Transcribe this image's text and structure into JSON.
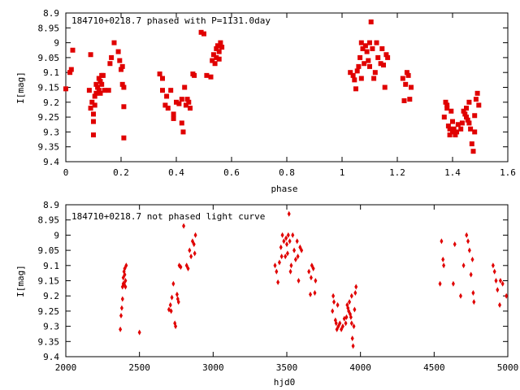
{
  "chart_data": [
    {
      "type": "scatter",
      "title": "184710+0218.7 phased with P=1131.0day",
      "xlabel": "phase",
      "ylabel": "I[mag]",
      "xlim": [
        0,
        1.6
      ],
      "ylim": [
        8.9,
        9.4
      ],
      "y_inverted": true,
      "grid": false,
      "marker": "filled square",
      "color": "#e00000",
      "xticks": [
        "0",
        "0.2",
        "0.4",
        "0.6",
        "0.8",
        "1",
        "1.2",
        "1.4",
        "1.6"
      ],
      "yticks": [
        "8.9",
        "8.95",
        "9",
        "9.05",
        "9.1",
        "9.15",
        "9.2",
        "9.25",
        "9.3",
        "9.35",
        "9.4"
      ],
      "points": [
        [
          0.0,
          9.155
        ],
        [
          0.015,
          9.1
        ],
        [
          0.02,
          9.09
        ],
        [
          0.025,
          9.025
        ],
        [
          0.085,
          9.16
        ],
        [
          0.09,
          9.04
        ],
        [
          0.095,
          9.2
        ],
        [
          0.1,
          9.31
        ],
        [
          0.1,
          9.265
        ],
        [
          0.105,
          9.21
        ],
        [
          0.105,
          9.18
        ],
        [
          0.11,
          9.17
        ],
        [
          0.11,
          9.14
        ],
        [
          0.115,
          9.15
        ],
        [
          0.12,
          9.16
        ],
        [
          0.12,
          9.12
        ],
        [
          0.125,
          9.13
        ],
        [
          0.13,
          9.11
        ],
        [
          0.13,
          9.14
        ],
        [
          0.135,
          9.11
        ],
        [
          0.14,
          9.16
        ],
        [
          0.09,
          9.22
        ],
        [
          0.1,
          9.24
        ],
        [
          0.125,
          9.17
        ],
        [
          0.155,
          9.16
        ],
        [
          0.16,
          9.07
        ],
        [
          0.165,
          9.05
        ],
        [
          0.175,
          9.0
        ],
        [
          0.19,
          9.03
        ],
        [
          0.195,
          9.06
        ],
        [
          0.2,
          9.09
        ],
        [
          0.205,
          9.14
        ],
        [
          0.21,
          9.15
        ],
        [
          0.21,
          9.215
        ],
        [
          0.21,
          9.32
        ],
        [
          0.205,
          9.08
        ],
        [
          0.34,
          9.105
        ],
        [
          0.35,
          9.12
        ],
        [
          0.35,
          9.16
        ],
        [
          0.36,
          9.21
        ],
        [
          0.365,
          9.18
        ],
        [
          0.37,
          9.22
        ],
        [
          0.38,
          9.16
        ],
        [
          0.39,
          9.24
        ],
        [
          0.39,
          9.255
        ],
        [
          0.4,
          9.2
        ],
        [
          0.41,
          9.205
        ],
        [
          0.42,
          9.19
        ],
        [
          0.42,
          9.27
        ],
        [
          0.425,
          9.3
        ],
        [
          0.43,
          9.15
        ],
        [
          0.435,
          9.21
        ],
        [
          0.44,
          9.19
        ],
        [
          0.445,
          9.2
        ],
        [
          0.45,
          9.22
        ],
        [
          0.46,
          9.105
        ],
        [
          0.465,
          9.11
        ],
        [
          0.49,
          8.965
        ],
        [
          0.5,
          8.97
        ],
        [
          0.51,
          9.11
        ],
        [
          0.525,
          9.115
        ],
        [
          0.53,
          9.06
        ],
        [
          0.535,
          9.04
        ],
        [
          0.54,
          9.07
        ],
        [
          0.545,
          9.02
        ],
        [
          0.55,
          9.01
        ],
        [
          0.555,
          9.03
        ],
        [
          0.56,
          9.0
        ],
        [
          0.565,
          9.015
        ],
        [
          0.555,
          9.055
        ],
        [
          0.545,
          9.05
        ],
        [
          1.03,
          9.1
        ],
        [
          1.04,
          9.11
        ],
        [
          1.045,
          9.125
        ],
        [
          1.05,
          9.155
        ],
        [
          1.055,
          9.095
        ],
        [
          1.06,
          9.08
        ],
        [
          1.065,
          9.05
        ],
        [
          1.07,
          9.0
        ],
        [
          1.075,
          9.02
        ],
        [
          1.08,
          9.07
        ],
        [
          1.085,
          9.01
        ],
        [
          1.09,
          9.03
        ],
        [
          1.095,
          9.06
        ],
        [
          1.1,
          9.0
        ],
        [
          1.105,
          8.93
        ],
        [
          1.11,
          9.02
        ],
        [
          1.115,
          9.12
        ],
        [
          1.12,
          9.1
        ],
        [
          1.125,
          9.0
        ],
        [
          1.13,
          9.05
        ],
        [
          1.14,
          9.07
        ],
        [
          1.145,
          9.02
        ],
        [
          1.15,
          9.075
        ],
        [
          1.155,
          9.15
        ],
        [
          1.16,
          9.04
        ],
        [
          1.165,
          9.05
        ],
        [
          1.07,
          9.12
        ],
        [
          1.1,
          9.08
        ],
        [
          1.22,
          9.12
        ],
        [
          1.225,
          9.195
        ],
        [
          1.23,
          9.14
        ],
        [
          1.235,
          9.1
        ],
        [
          1.24,
          9.11
        ],
        [
          1.245,
          9.19
        ],
        [
          1.25,
          9.15
        ],
        [
          1.37,
          9.25
        ],
        [
          1.375,
          9.2
        ],
        [
          1.38,
          9.22
        ],
        [
          1.385,
          9.28
        ],
        [
          1.39,
          9.29
        ],
        [
          1.39,
          9.31
        ],
        [
          1.395,
          9.23
        ],
        [
          1.4,
          9.3
        ],
        [
          1.405,
          9.29
        ],
        [
          1.41,
          9.31
        ],
        [
          1.415,
          9.3
        ],
        [
          1.42,
          9.275
        ],
        [
          1.43,
          9.29
        ],
        [
          1.435,
          9.27
        ],
        [
          1.44,
          9.23
        ],
        [
          1.445,
          9.24
        ],
        [
          1.45,
          9.25
        ],
        [
          1.45,
          9.22
        ],
        [
          1.455,
          9.26
        ],
        [
          1.46,
          9.27
        ],
        [
          1.46,
          9.2
        ],
        [
          1.465,
          9.29
        ],
        [
          1.47,
          9.34
        ],
        [
          1.475,
          9.365
        ],
        [
          1.48,
          9.3
        ],
        [
          1.48,
          9.245
        ],
        [
          1.485,
          9.19
        ],
        [
          1.49,
          9.17
        ],
        [
          1.495,
          9.21
        ],
        [
          1.38,
          9.21
        ],
        [
          1.4,
          9.265
        ]
      ]
    },
    {
      "type": "scatter",
      "title": "184710+0218.7 not phased light curve",
      "xlabel": "hjd0",
      "ylabel": "I[mag]",
      "xlim": [
        2000,
        5000
      ],
      "ylim": [
        8.9,
        9.4
      ],
      "y_inverted": true,
      "grid": false,
      "marker": "diamond",
      "color": "#e00000",
      "xticks": [
        "2000",
        "2500",
        "3000",
        "3500",
        "4000",
        "4500",
        "5000"
      ],
      "yticks": [
        "8.9",
        "8.95",
        "9",
        "9.05",
        "9.1",
        "9.15",
        "9.2",
        "9.25",
        "9.3",
        "9.35",
        "9.4"
      ],
      "points": [
        [
          2370,
          9.31
        ],
        [
          2375,
          9.265
        ],
        [
          2380,
          9.24
        ],
        [
          2385,
          9.21
        ],
        [
          2385,
          9.17
        ],
        [
          2390,
          9.16
        ],
        [
          2390,
          9.14
        ],
        [
          2395,
          9.16
        ],
        [
          2395,
          9.12
        ],
        [
          2400,
          9.13
        ],
        [
          2400,
          9.11
        ],
        [
          2405,
          9.15
        ],
        [
          2410,
          9.1
        ],
        [
          2405,
          9.17
        ],
        [
          2500,
          9.32
        ],
        [
          2700,
          9.245
        ],
        [
          2710,
          9.23
        ],
        [
          2715,
          9.25
        ],
        [
          2720,
          9.205
        ],
        [
          2730,
          9.16
        ],
        [
          2740,
          9.29
        ],
        [
          2745,
          9.3
        ],
        [
          2755,
          9.195
        ],
        [
          2760,
          9.21
        ],
        [
          2765,
          9.22
        ],
        [
          2770,
          9.1
        ],
        [
          2780,
          9.105
        ],
        [
          2800,
          8.97
        ],
        [
          2820,
          9.1
        ],
        [
          2830,
          9.11
        ],
        [
          2840,
          9.05
        ],
        [
          2850,
          9.07
        ],
        [
          2860,
          9.02
        ],
        [
          2870,
          9.03
        ],
        [
          2880,
          9.0
        ],
        [
          2875,
          9.06
        ],
        [
          3420,
          9.1
        ],
        [
          3430,
          9.12
        ],
        [
          3440,
          9.155
        ],
        [
          3450,
          9.09
        ],
        [
          3460,
          9.04
        ],
        [
          3465,
          9.07
        ],
        [
          3470,
          9.0
        ],
        [
          3480,
          9.02
        ],
        [
          3490,
          9.07
        ],
        [
          3495,
          9.01
        ],
        [
          3500,
          9.03
        ],
        [
          3505,
          9.06
        ],
        [
          3510,
          9.0
        ],
        [
          3515,
          8.93
        ],
        [
          3520,
          9.02
        ],
        [
          3525,
          9.12
        ],
        [
          3530,
          9.1
        ],
        [
          3540,
          9.0
        ],
        [
          3550,
          9.05
        ],
        [
          3560,
          9.08
        ],
        [
          3570,
          9.02
        ],
        [
          3575,
          9.07
        ],
        [
          3580,
          9.15
        ],
        [
          3590,
          9.04
        ],
        [
          3600,
          9.05
        ],
        [
          3650,
          9.12
        ],
        [
          3660,
          9.195
        ],
        [
          3665,
          9.14
        ],
        [
          3670,
          9.1
        ],
        [
          3680,
          9.11
        ],
        [
          3690,
          9.19
        ],
        [
          3695,
          9.15
        ],
        [
          3810,
          9.25
        ],
        [
          3815,
          9.2
        ],
        [
          3820,
          9.22
        ],
        [
          3830,
          9.28
        ],
        [
          3835,
          9.29
        ],
        [
          3840,
          9.31
        ],
        [
          3845,
          9.23
        ],
        [
          3850,
          9.3
        ],
        [
          3860,
          9.29
        ],
        [
          3870,
          9.31
        ],
        [
          3880,
          9.3
        ],
        [
          3890,
          9.275
        ],
        [
          3900,
          9.29
        ],
        [
          3905,
          9.27
        ],
        [
          3910,
          9.23
        ],
        [
          3915,
          9.24
        ],
        [
          3920,
          9.25
        ],
        [
          3925,
          9.22
        ],
        [
          3930,
          9.26
        ],
        [
          3935,
          9.27
        ],
        [
          3940,
          9.2
        ],
        [
          3940,
          9.29
        ],
        [
          3945,
          9.34
        ],
        [
          3950,
          9.365
        ],
        [
          3955,
          9.3
        ],
        [
          3960,
          9.245
        ],
        [
          3965,
          9.19
        ],
        [
          3970,
          9.17
        ],
        [
          4540,
          9.16
        ],
        [
          4550,
          9.02
        ],
        [
          4560,
          9.08
        ],
        [
          4565,
          9.1
        ],
        [
          4630,
          9.16
        ],
        [
          4640,
          9.03
        ],
        [
          4680,
          9.2
        ],
        [
          4700,
          9.1
        ],
        [
          4720,
          9.0
        ],
        [
          4730,
          9.02
        ],
        [
          4740,
          9.05
        ],
        [
          4750,
          9.13
        ],
        [
          4760,
          9.08
        ],
        [
          4765,
          9.19
        ],
        [
          4770,
          9.22
        ],
        [
          4900,
          9.1
        ],
        [
          4910,
          9.12
        ],
        [
          4920,
          9.15
        ],
        [
          4930,
          9.18
        ],
        [
          4945,
          9.23
        ],
        [
          4950,
          9.15
        ],
        [
          4965,
          9.16
        ],
        [
          4990,
          9.2
        ]
      ]
    }
  ]
}
